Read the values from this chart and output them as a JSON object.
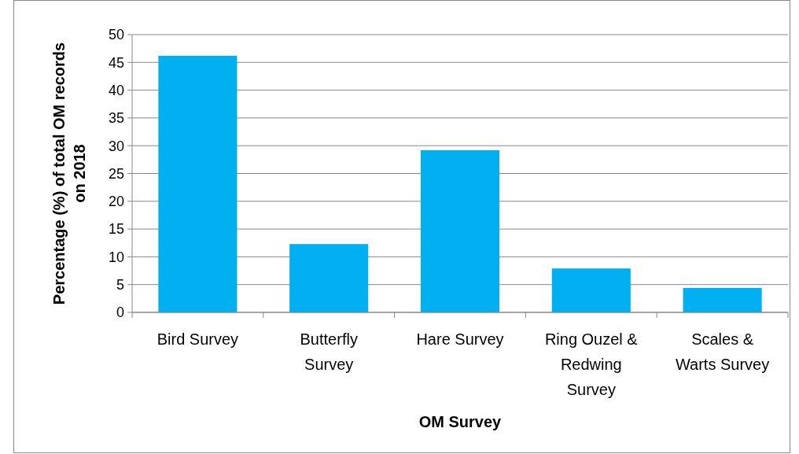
{
  "chart_data": {
    "type": "bar",
    "xlabel": "OM Survey",
    "ylabel": "Percentage (%) of total OM records on 2018",
    "categories": [
      "Bird Survey",
      "Butterfly Survey",
      "Hare Survey",
      "Ring Ouzel & Redwing Survey",
      "Scales & Warts Survey"
    ],
    "values": [
      46.2,
      12.3,
      29.2,
      7.9,
      4.4
    ],
    "color": "#00b0f0",
    "ylim": [
      0,
      50
    ],
    "yticks": [
      0,
      5,
      10,
      15,
      20,
      25,
      30,
      35,
      40,
      45,
      50
    ],
    "grid": "y"
  }
}
